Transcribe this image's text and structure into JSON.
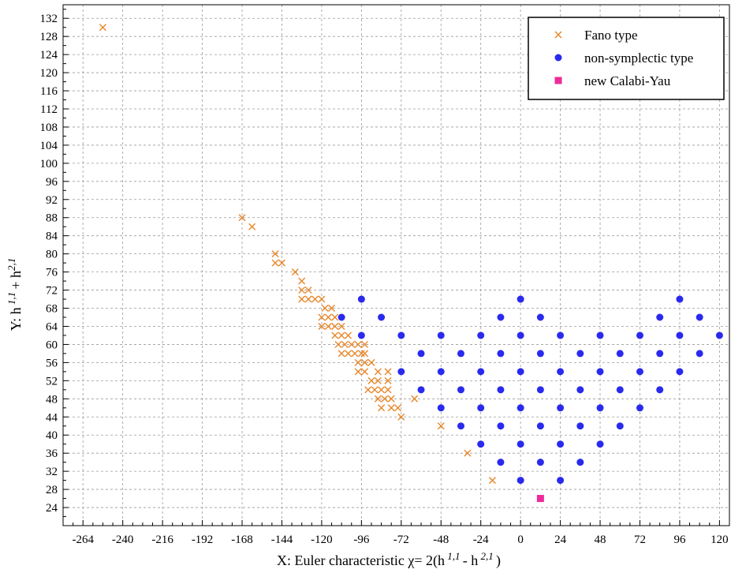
{
  "chart_data": {
    "type": "scatter",
    "xlabel": "X: Euler characteristic χ= 2(h 1,1 - h 2,1 )",
    "ylabel": "Y: h 1,1 + h 2,1",
    "xlim": [
      -276,
      126
    ],
    "ylim": [
      20,
      135
    ],
    "x_ticks": [
      -264,
      -240,
      -216,
      -192,
      -168,
      -144,
      -120,
      -96,
      -72,
      -48,
      -24,
      0,
      24,
      48,
      72,
      96,
      120
    ],
    "y_ticks": [
      24,
      28,
      32,
      36,
      40,
      44,
      48,
      52,
      56,
      60,
      64,
      68,
      72,
      76,
      80,
      84,
      88,
      92,
      96,
      100,
      104,
      108,
      112,
      116,
      120,
      124,
      128,
      132
    ],
    "grid": true,
    "legend_position": "top-right",
    "series": [
      {
        "name": "Fano type",
        "marker": "x",
        "color": "#e8872a",
        "points": [
          [
            -252,
            130
          ],
          [
            -168,
            88
          ],
          [
            -162,
            86
          ],
          [
            -148,
            80
          ],
          [
            -148,
            78
          ],
          [
            -144,
            78
          ],
          [
            -136,
            76
          ],
          [
            -132,
            74
          ],
          [
            -132,
            72
          ],
          [
            -128,
            72
          ],
          [
            -132,
            70
          ],
          [
            -128,
            70
          ],
          [
            -124,
            70
          ],
          [
            -120,
            70
          ],
          [
            -118,
            68
          ],
          [
            -114,
            68
          ],
          [
            -120,
            66
          ],
          [
            -116,
            66
          ],
          [
            -112,
            66
          ],
          [
            -120,
            64
          ],
          [
            -116,
            64
          ],
          [
            -112,
            64
          ],
          [
            -108,
            64
          ],
          [
            -112,
            62
          ],
          [
            -108,
            62
          ],
          [
            -104,
            62
          ],
          [
            -110,
            60
          ],
          [
            -106,
            60
          ],
          [
            -102,
            60
          ],
          [
            -98,
            60
          ],
          [
            -94,
            60
          ],
          [
            -108,
            58
          ],
          [
            -104,
            58
          ],
          [
            -100,
            58
          ],
          [
            -96,
            58
          ],
          [
            -94,
            58
          ],
          [
            -98,
            56
          ],
          [
            -94,
            56
          ],
          [
            -90,
            56
          ],
          [
            -98,
            54
          ],
          [
            -94,
            54
          ],
          [
            -86,
            54
          ],
          [
            -80,
            54
          ],
          [
            -90,
            52
          ],
          [
            -86,
            52
          ],
          [
            -80,
            52
          ],
          [
            -92,
            50
          ],
          [
            -88,
            50
          ],
          [
            -84,
            50
          ],
          [
            -80,
            50
          ],
          [
            -86,
            48
          ],
          [
            -82,
            48
          ],
          [
            -78,
            48
          ],
          [
            -64,
            48
          ],
          [
            -84,
            46
          ],
          [
            -78,
            46
          ],
          [
            -74,
            46
          ],
          [
            -72,
            44
          ],
          [
            -48,
            42
          ],
          [
            -32,
            36
          ],
          [
            -17,
            30
          ]
        ]
      },
      {
        "name": "non-symplectic type",
        "marker": "circle",
        "color": "#2a2aee",
        "points": [
          [
            -96,
            70
          ],
          [
            0,
            70
          ],
          [
            96,
            70
          ],
          [
            -108,
            66
          ],
          [
            -84,
            66
          ],
          [
            -12,
            66
          ],
          [
            12,
            66
          ],
          [
            84,
            66
          ],
          [
            108,
            66
          ],
          [
            -96,
            62
          ],
          [
            -72,
            62
          ],
          [
            -48,
            62
          ],
          [
            -24,
            62
          ],
          [
            0,
            62
          ],
          [
            24,
            62
          ],
          [
            48,
            62
          ],
          [
            72,
            62
          ],
          [
            96,
            62
          ],
          [
            120,
            62
          ],
          [
            -60,
            58
          ],
          [
            -36,
            58
          ],
          [
            -12,
            58
          ],
          [
            12,
            58
          ],
          [
            36,
            58
          ],
          [
            60,
            58
          ],
          [
            84,
            58
          ],
          [
            108,
            58
          ],
          [
            -72,
            54
          ],
          [
            -48,
            54
          ],
          [
            -24,
            54
          ],
          [
            0,
            54
          ],
          [
            24,
            54
          ],
          [
            48,
            54
          ],
          [
            72,
            54
          ],
          [
            96,
            54
          ],
          [
            -60,
            50
          ],
          [
            -36,
            50
          ],
          [
            -12,
            50
          ],
          [
            12,
            50
          ],
          [
            36,
            50
          ],
          [
            60,
            50
          ],
          [
            84,
            50
          ],
          [
            -48,
            46
          ],
          [
            -24,
            46
          ],
          [
            0,
            46
          ],
          [
            24,
            46
          ],
          [
            48,
            46
          ],
          [
            72,
            46
          ],
          [
            -36,
            42
          ],
          [
            -12,
            42
          ],
          [
            12,
            42
          ],
          [
            36,
            42
          ],
          [
            60,
            42
          ],
          [
            -24,
            38
          ],
          [
            0,
            38
          ],
          [
            24,
            38
          ],
          [
            48,
            38
          ],
          [
            -12,
            34
          ],
          [
            12,
            34
          ],
          [
            36,
            34
          ],
          [
            0,
            30
          ],
          [
            24,
            30
          ]
        ]
      },
      {
        "name": "new Calabi-Yau",
        "marker": "square",
        "color": "#ee2a9a",
        "points": [
          [
            12,
            26
          ]
        ]
      }
    ]
  }
}
